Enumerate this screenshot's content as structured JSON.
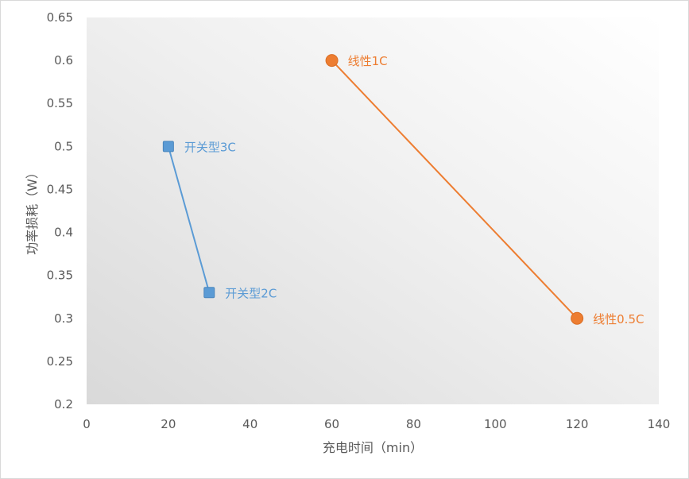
{
  "chart_data": {
    "type": "scatter",
    "xlabel": "充电时间（min）",
    "ylabel": "功率损耗（W）",
    "xlim": [
      0,
      140
    ],
    "ylim": [
      0.2,
      0.65
    ],
    "x_ticks": [
      "0",
      "20",
      "40",
      "60",
      "80",
      "100",
      "120",
      "140"
    ],
    "y_ticks": [
      "0.2",
      "0.25",
      "0.3",
      "0.35",
      "0.4",
      "0.45",
      "0.5",
      "0.55",
      "0.6",
      "0.65"
    ],
    "x_tick_values": [
      0,
      20,
      40,
      60,
      80,
      100,
      120,
      140
    ],
    "y_tick_values": [
      0.2,
      0.25,
      0.3,
      0.35,
      0.4,
      0.45,
      0.5,
      0.55,
      0.6,
      0.65
    ],
    "grid": false,
    "series": [
      {
        "marker": "square",
        "color": "#5b9bd5",
        "points": [
          {
            "x": 20,
            "y": 0.5,
            "label": "开关型3C"
          },
          {
            "x": 30,
            "y": 0.33,
            "label": "开关型2C"
          }
        ]
      },
      {
        "marker": "circle",
        "color": "#ed7d31",
        "points": [
          {
            "x": 60,
            "y": 0.6,
            "label": "线性1C"
          },
          {
            "x": 120,
            "y": 0.3,
            "label": "线性0.5C"
          }
        ]
      }
    ]
  }
}
